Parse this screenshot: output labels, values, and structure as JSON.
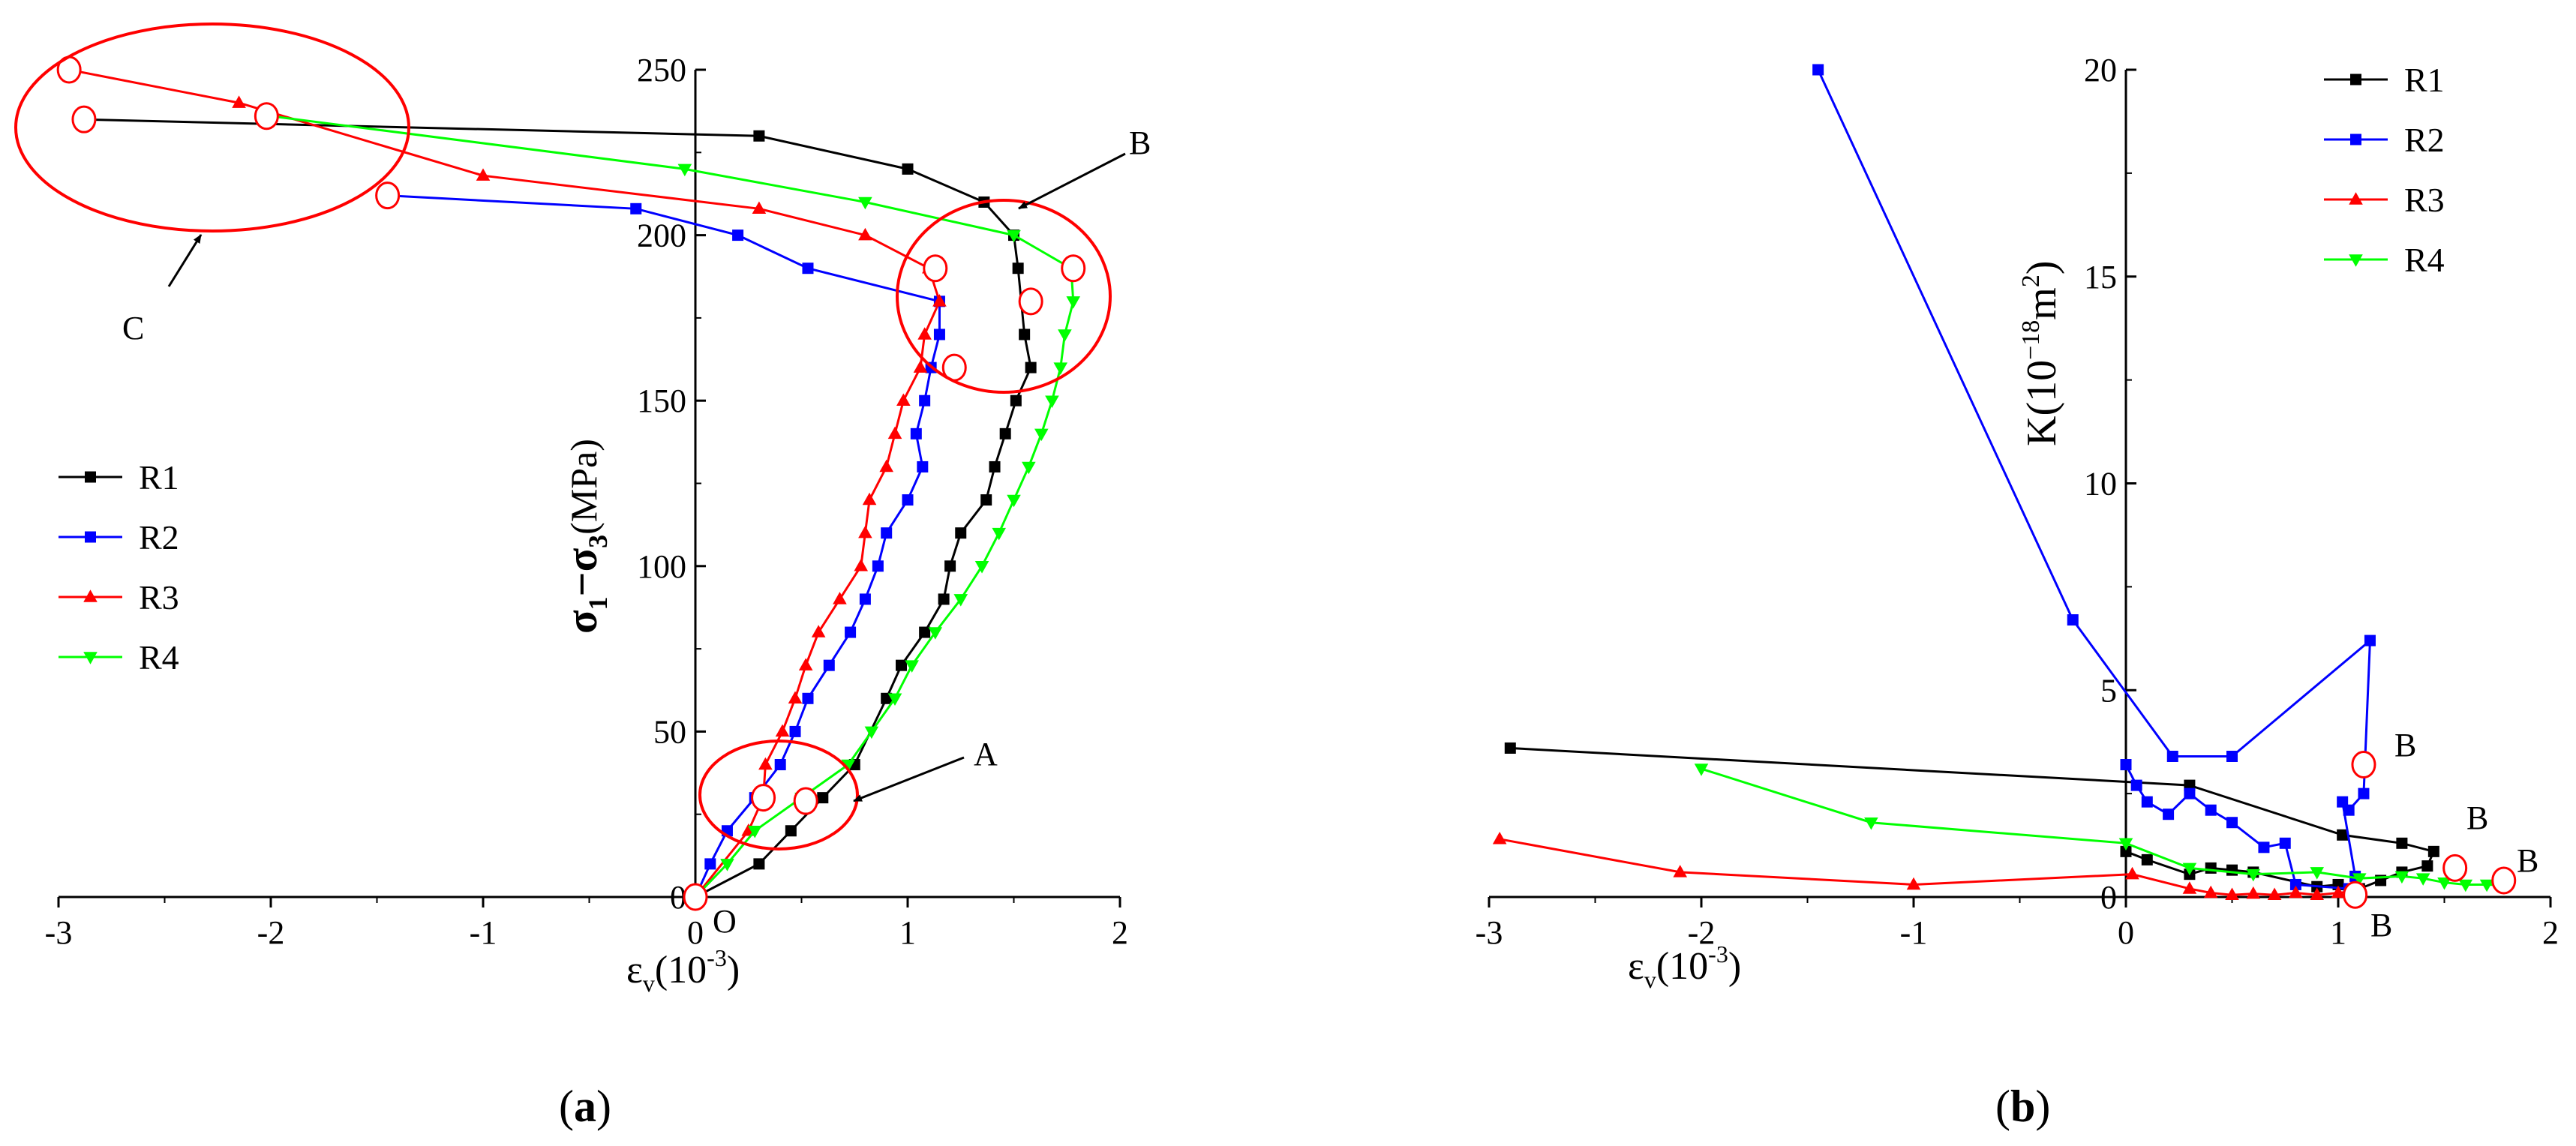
{
  "colors": {
    "R1": "#000000",
    "R2": "#0000ff",
    "R3": "#ff0000",
    "R4": "#00ff00",
    "circle": "#ff0000"
  },
  "chart_data": [
    {
      "type": "line",
      "panel_label": "a",
      "ylabel_main": "σ",
      "ylabel_sub1": "1",
      "ylabel_mid": "−σ",
      "ylabel_sub2": "3",
      "ylabel_unit": "(MPa)",
      "xlabel_main": "ε",
      "xlabel_sub": "v",
      "xlabel_unit": "(10",
      "xlabel_exp": "-3",
      "xlabel_close": ")",
      "xlim": [
        -3,
        2
      ],
      "ylim": [
        0,
        250
      ],
      "x_ticks": [
        -3,
        -2,
        -1,
        0,
        1,
        2
      ],
      "x_tick_labels": [
        "-3",
        "-2",
        "-1",
        "0",
        "1",
        "2"
      ],
      "y_ticks": [
        0,
        50,
        100,
        150,
        200,
        250
      ],
      "y_tick_labels": [
        "0",
        "50",
        "100",
        "150",
        "200",
        "250"
      ],
      "origin_label": "O",
      "legend": "left-middle",
      "series": [
        {
          "name": "R1",
          "marker": "square",
          "points": [
            [
              0,
              0
            ],
            [
              0.3,
              10
            ],
            [
              0.45,
              20
            ],
            [
              0.6,
              30
            ],
            [
              0.75,
              40
            ],
            [
              0.9,
              60
            ],
            [
              0.97,
              70
            ],
            [
              1.08,
              80
            ],
            [
              1.17,
              90
            ],
            [
              1.2,
              100
            ],
            [
              1.25,
              110
            ],
            [
              1.37,
              120
            ],
            [
              1.41,
              130
            ],
            [
              1.46,
              140
            ],
            [
              1.51,
              150
            ],
            [
              1.58,
              160
            ],
            [
              1.55,
              170
            ],
            [
              1.52,
              190
            ],
            [
              1.5,
              200
            ],
            [
              1.36,
              210
            ],
            [
              1.0,
              220
            ],
            [
              0.3,
              230
            ],
            [
              -2.9,
              235
            ]
          ]
        },
        {
          "name": "R2",
          "marker": "square",
          "points": [
            [
              0,
              0
            ],
            [
              0.07,
              10
            ],
            [
              0.15,
              20
            ],
            [
              0.28,
              30
            ],
            [
              0.4,
              40
            ],
            [
              0.47,
              50
            ],
            [
              0.53,
              60
            ],
            [
              0.63,
              70
            ],
            [
              0.73,
              80
            ],
            [
              0.8,
              90
            ],
            [
              0.86,
              100
            ],
            [
              0.9,
              110
            ],
            [
              1.0,
              120
            ],
            [
              1.07,
              130
            ],
            [
              1.04,
              140
            ],
            [
              1.08,
              150
            ],
            [
              1.11,
              160
            ],
            [
              1.15,
              170
            ],
            [
              1.15,
              180
            ],
            [
              0.53,
              190
            ],
            [
              0.2,
              200
            ],
            [
              -0.28,
              208
            ],
            [
              -1.45,
              212
            ]
          ]
        },
        {
          "name": "R3",
          "marker": "triangle-up",
          "points": [
            [
              0,
              0
            ],
            [
              0.25,
              20
            ],
            [
              0.32,
              30
            ],
            [
              0.33,
              40
            ],
            [
              0.41,
              50
            ],
            [
              0.47,
              60
            ],
            [
              0.52,
              70
            ],
            [
              0.58,
              80
            ],
            [
              0.68,
              90
            ],
            [
              0.78,
              100
            ],
            [
              0.8,
              110
            ],
            [
              0.82,
              120
            ],
            [
              0.9,
              130
            ],
            [
              0.94,
              140
            ],
            [
              0.98,
              150
            ],
            [
              1.06,
              160
            ],
            [
              1.08,
              170
            ],
            [
              1.15,
              180
            ],
            [
              1.1,
              190
            ],
            [
              0.8,
              200
            ],
            [
              0.3,
              208
            ],
            [
              -1.0,
              218
            ],
            [
              -2.15,
              240
            ],
            [
              -2.95,
              250
            ]
          ]
        },
        {
          "name": "R4",
          "marker": "triangle-down",
          "points": [
            [
              0,
              0
            ],
            [
              0.15,
              10
            ],
            [
              0.28,
              20
            ],
            [
              0.5,
              30
            ],
            [
              0.72,
              40
            ],
            [
              0.83,
              50
            ],
            [
              0.94,
              60
            ],
            [
              1.02,
              70
            ],
            [
              1.13,
              80
            ],
            [
              1.25,
              90
            ],
            [
              1.35,
              100
            ],
            [
              1.43,
              110
            ],
            [
              1.5,
              120
            ],
            [
              1.57,
              130
            ],
            [
              1.63,
              140
            ],
            [
              1.68,
              150
            ],
            [
              1.72,
              160
            ],
            [
              1.74,
              170
            ],
            [
              1.78,
              180
            ],
            [
              1.77,
              190
            ],
            [
              1.5,
              200
            ],
            [
              0.8,
              210
            ],
            [
              -0.05,
              220
            ],
            [
              -2.0,
              236
            ]
          ]
        }
      ],
      "circle_markers": [
        [
          -2.95,
          250
        ],
        [
          -2.88,
          235
        ],
        [
          -2.02,
          236
        ],
        [
          -1.45,
          212
        ],
        [
          1.13,
          190
        ],
        [
          1.58,
          180
        ],
        [
          1.78,
          190
        ],
        [
          1.22,
          160
        ],
        [
          0.32,
          30
        ],
        [
          0.52,
          29
        ],
        [
          0,
          0
        ]
      ],
      "annotations": [
        {
          "text": "A"
        },
        {
          "text": "B"
        },
        {
          "text": "C"
        }
      ]
    },
    {
      "type": "line",
      "panel_label": "b",
      "ylabel_main": "K(10",
      "ylabel_exp": "−18",
      "ylabel_unit": "m",
      "ylabel_exp2": "2",
      "ylabel_close": ")",
      "xlabel_main": "ε",
      "xlabel_sub": "v",
      "xlabel_unit": "(10",
      "xlabel_exp": "-3",
      "xlabel_close": ")",
      "xlim": [
        -3,
        2
      ],
      "ylim": [
        0,
        20
      ],
      "x_ticks": [
        -3,
        -2,
        -1,
        0,
        1,
        2
      ],
      "x_tick_labels": [
        "-3",
        "-2",
        "-1",
        "0",
        "1",
        "2"
      ],
      "y_ticks": [
        0,
        5,
        10,
        15,
        20
      ],
      "y_tick_labels": [
        "0",
        "5",
        "10",
        "15",
        "20"
      ],
      "legend": "top-right",
      "series": [
        {
          "name": "R1",
          "marker": "square",
          "points": [
            [
              -2.9,
              3.6
            ],
            [
              0.3,
              2.7
            ],
            [
              1.02,
              1.5
            ],
            [
              1.3,
              1.3
            ],
            [
              1.45,
              1.1
            ],
            [
              1.42,
              0.75
            ],
            [
              1.3,
              0.6
            ],
            [
              1.2,
              0.4
            ],
            [
              1.1,
              0.2
            ],
            [
              1.0,
              0.3
            ],
            [
              0.9,
              0.25
            ],
            [
              0.6,
              0.6
            ],
            [
              0.5,
              0.65
            ],
            [
              0.4,
              0.7
            ],
            [
              0.3,
              0.55
            ],
            [
              0.1,
              0.9
            ],
            [
              0,
              1.1
            ]
          ]
        },
        {
          "name": "R2",
          "marker": "square",
          "points": [
            [
              -1.45,
              20
            ],
            [
              -0.25,
              6.7
            ],
            [
              0.22,
              3.4
            ],
            [
              0.5,
              3.4
            ],
            [
              1.15,
              6.2
            ],
            [
              1.12,
              2.5
            ],
            [
              1.05,
              2.1
            ],
            [
              1.02,
              2.3
            ],
            [
              1.08,
              0.5
            ],
            [
              1.05,
              0.2
            ],
            [
              0.8,
              0.3
            ],
            [
              0.75,
              1.3
            ],
            [
              0.65,
              1.2
            ],
            [
              0.5,
              1.8
            ],
            [
              0.4,
              2.1
            ],
            [
              0.3,
              2.5
            ],
            [
              0.2,
              2.0
            ],
            [
              0.1,
              2.3
            ],
            [
              0.05,
              2.7
            ],
            [
              0,
              3.2
            ]
          ]
        },
        {
          "name": "R3",
          "marker": "triangle-up",
          "points": [
            [
              -2.95,
              1.4
            ],
            [
              -2.1,
              0.6
            ],
            [
              -1.0,
              0.3
            ],
            [
              0.03,
              0.55
            ],
            [
              0.3,
              0.2
            ],
            [
              0.4,
              0.1
            ],
            [
              0.5,
              0.05
            ],
            [
              0.6,
              0.08
            ],
            [
              0.7,
              0.05
            ],
            [
              0.8,
              0.1
            ],
            [
              0.9,
              0.05
            ],
            [
              1.0,
              0.1
            ],
            [
              1.1,
              0.15
            ]
          ]
        },
        {
          "name": "R4",
          "marker": "triangle-down",
          "points": [
            [
              -2.0,
              3.1
            ],
            [
              -1.2,
              1.8
            ],
            [
              0,
              1.3
            ],
            [
              0.3,
              0.7
            ],
            [
              0.6,
              0.55
            ],
            [
              0.9,
              0.6
            ],
            [
              1.1,
              0.45
            ],
            [
              1.3,
              0.5
            ],
            [
              1.4,
              0.45
            ],
            [
              1.5,
              0.35
            ],
            [
              1.6,
              0.3
            ],
            [
              1.7,
              0.3
            ],
            [
              1.8,
              0.28
            ]
          ]
        }
      ],
      "circle_markers": [
        [
          1.12,
          3.2
        ],
        [
          1.08,
          0.05
        ],
        [
          1.55,
          0.7
        ],
        [
          1.78,
          0.4
        ]
      ],
      "annotations": [
        {
          "text": "B"
        },
        {
          "text": "B"
        },
        {
          "text": "B"
        },
        {
          "text": "B"
        }
      ]
    }
  ]
}
